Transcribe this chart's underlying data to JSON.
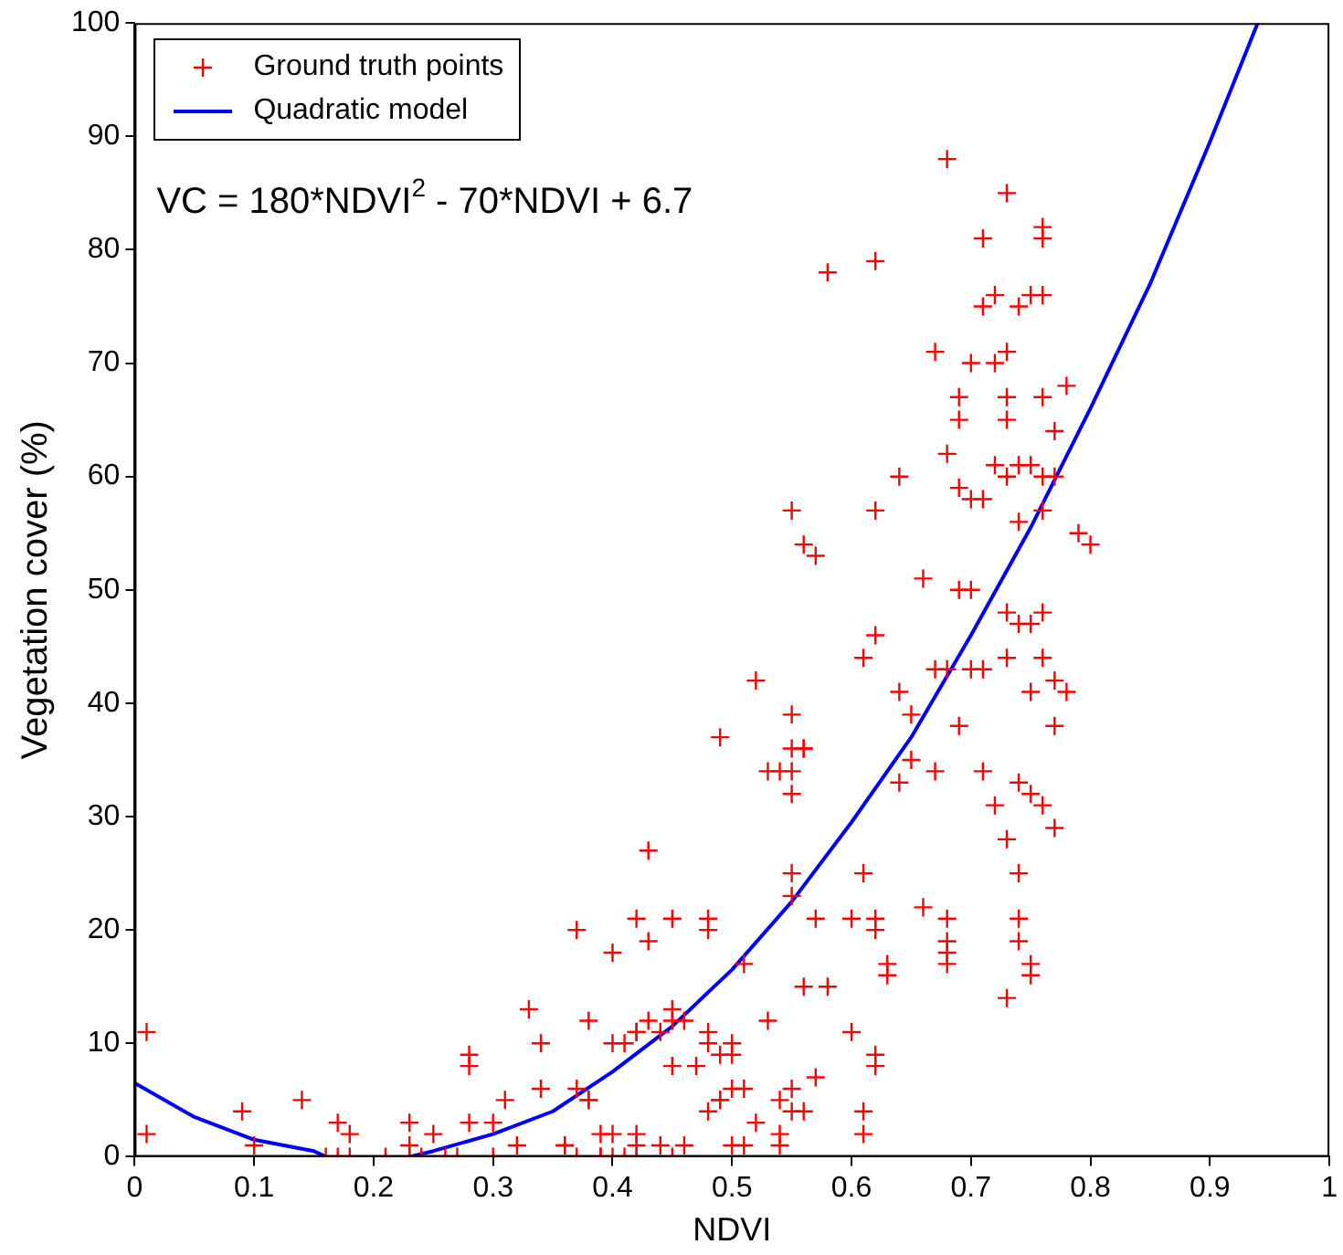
{
  "chart_data": {
    "type": "scatter",
    "xlabel": "NDVI",
    "ylabel": "Vegetation cover (%)",
    "xlim": [
      0,
      1
    ],
    "ylim": [
      0,
      100
    ],
    "xticks": [
      0,
      0.1,
      0.2,
      0.3,
      0.4,
      0.5,
      0.6,
      0.7,
      0.8,
      0.9,
      1
    ],
    "yticks": [
      0,
      10,
      20,
      30,
      40,
      50,
      60,
      70,
      80,
      90,
      100
    ],
    "grid": false,
    "legend": "top left",
    "marker": "cross",
    "annotations": [
      "VC = 180*NDVI$^{2}$ - 70*NDVI + 6.7"
    ],
    "series": [
      {
        "name": "Ground truth points",
        "color": "#ff0000",
        "x": [
          0.01,
          0.01,
          0.09,
          0.1,
          0.14,
          0.17,
          0.18,
          0.16,
          0.17,
          0.18,
          0.21,
          0.23,
          0.23,
          0.23,
          0.24,
          0.25,
          0.26,
          0.27,
          0.28,
          0.28,
          0.28,
          0.3,
          0.31,
          0.32,
          0.33,
          0.34,
          0.34,
          0.36,
          0.3,
          0.37,
          0.38,
          0.38,
          0.39,
          0.39,
          0.4,
          0.4,
          0.41,
          0.42,
          0.42,
          0.42,
          0.43,
          0.43,
          0.44,
          0.45,
          0.45,
          0.45,
          0.45,
          0.46,
          0.47,
          0.48,
          0.48,
          0.48,
          0.48,
          0.48,
          0.49,
          0.49,
          0.5,
          0.5,
          0.5,
          0.5,
          0.51,
          0.51,
          0.51,
          0.52,
          0.52,
          0.53,
          0.53,
          0.54,
          0.54,
          0.54,
          0.55,
          0.55,
          0.55,
          0.55,
          0.55,
          0.55,
          0.55,
          0.55,
          0.55,
          0.56,
          0.56,
          0.56,
          0.56,
          0.56,
          0.57,
          0.57,
          0.57,
          0.58,
          0.58,
          0.37,
          0.38,
          0.37,
          0.39,
          0.4,
          0.4,
          0.41,
          0.42,
          0.42,
          0.43,
          0.44,
          0.45,
          0.46,
          0.49,
          0.49,
          0.42,
          0.36,
          0.54,
          0.61,
          0.6,
          0.62,
          0.62,
          0.62,
          0.61,
          0.61,
          0.6,
          0.62,
          0.62,
          0.62,
          0.61,
          0.62,
          0.63,
          0.63,
          0.64,
          0.64,
          0.64,
          0.65,
          0.65,
          0.66,
          0.66,
          0.67,
          0.67,
          0.67,
          0.68,
          0.68,
          0.68,
          0.68,
          0.68,
          0.68,
          0.68,
          0.69,
          0.69,
          0.69,
          0.69,
          0.69,
          0.7,
          0.7,
          0.7,
          0.7,
          0.71,
          0.71,
          0.71,
          0.71,
          0.71,
          0.72,
          0.72,
          0.72,
          0.72,
          0.73,
          0.73,
          0.73,
          0.73,
          0.73,
          0.73,
          0.73,
          0.73,
          0.73,
          0.74,
          0.74,
          0.74,
          0.74,
          0.74,
          0.74,
          0.74,
          0.74,
          0.75,
          0.75,
          0.75,
          0.75,
          0.75,
          0.75,
          0.75,
          0.76,
          0.76,
          0.76,
          0.76,
          0.76,
          0.76,
          0.76,
          0.76,
          0.76,
          0.77,
          0.77,
          0.77,
          0.77,
          0.77,
          0.78,
          0.78,
          0.79,
          0.8
        ],
        "values": [
          11,
          2,
          4,
          1,
          5,
          3,
          2,
          0,
          0,
          0,
          0,
          3,
          1,
          0,
          0,
          2,
          0,
          0,
          9,
          8,
          3,
          3,
          5,
          1,
          13,
          10,
          6,
          1,
          0,
          20,
          12,
          5,
          2,
          0,
          18,
          10,
          10,
          21,
          11,
          2,
          27,
          19,
          11,
          21,
          13,
          12,
          8,
          12,
          8,
          21,
          20,
          11,
          10,
          4,
          37,
          5,
          10,
          9,
          6,
          1,
          17,
          6,
          1,
          42,
          3,
          34,
          12,
          34,
          5,
          1,
          57,
          39,
          36,
          34,
          32,
          25,
          23,
          6,
          4,
          54,
          36,
          36,
          15,
          4,
          53,
          21,
          7,
          78,
          15,
          6,
          5,
          0,
          0,
          2,
          0,
          0,
          0,
          1,
          12,
          1,
          0,
          1,
          9,
          5,
          11,
          1,
          2,
          44,
          21,
          21,
          79,
          57,
          25,
          4,
          11,
          20,
          9,
          8,
          2,
          46,
          17,
          16,
          60,
          41,
          33,
          39,
          35,
          51,
          22,
          71,
          43,
          34,
          88,
          62,
          43,
          21,
          19,
          18,
          17,
          65,
          67,
          59,
          50,
          38,
          70,
          58,
          50,
          43,
          81,
          75,
          58,
          43,
          34,
          76,
          70,
          61,
          31,
          85,
          71,
          67,
          65,
          60,
          48,
          44,
          28,
          14,
          75,
          61,
          56,
          47,
          33,
          25,
          21,
          19,
          76,
          61,
          47,
          41,
          32,
          17,
          16,
          82,
          81,
          76,
          67,
          60,
          57,
          48,
          44,
          31,
          64,
          60,
          42,
          38,
          29,
          68,
          41,
          55,
          54
        ]
      },
      {
        "name": "Quadratic model",
        "type": "line",
        "color": "#0000ff",
        "marker": "none",
        "line_style": "solid",
        "x": [
          0,
          0.05,
          0.1,
          0.15,
          0.16,
          0.2,
          0.23,
          0.25,
          0.3,
          0.35,
          0.4,
          0.45,
          0.5,
          0.55,
          0.6,
          0.65,
          0.7,
          0.75,
          0.8,
          0.85,
          0.9,
          0.94
        ],
        "values": [
          6.5,
          3.5,
          1.5,
          0.5,
          0,
          null,
          0,
          0.5,
          2,
          4,
          7.5,
          11.5,
          16.5,
          22.5,
          29.5,
          37,
          46,
          55.5,
          66,
          77,
          89.5,
          100
        ]
      }
    ]
  }
}
